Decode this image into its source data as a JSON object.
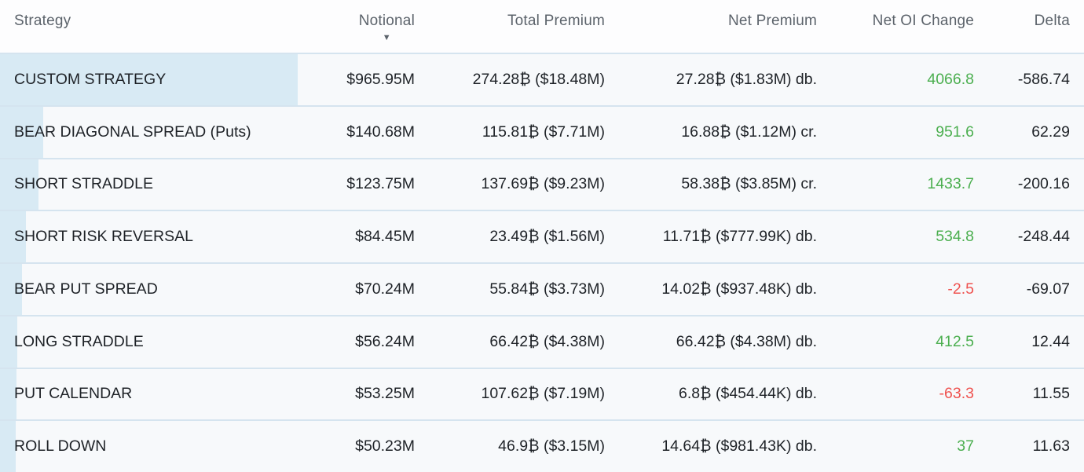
{
  "header": {
    "columns": [
      {
        "label": "Strategy"
      },
      {
        "label": "Notional",
        "sort": "desc"
      },
      {
        "label": "Total Premium"
      },
      {
        "label": "Net Premium"
      },
      {
        "label": "Net OI Change"
      },
      {
        "label": "Delta"
      }
    ],
    "sort_icon": "▼"
  },
  "colors": {
    "positive": "#4caf50",
    "negative": "#ef5350",
    "bar": "#d8eaf4",
    "row_bg": "#f7f9fb",
    "separator": "#d5e4ef",
    "header_text": "#5c636b",
    "body_text": "#1e2227"
  },
  "rows": [
    {
      "strategy": "CUSTOM STRATEGY",
      "notional": "$965.95M",
      "notional_value": 965.95,
      "total_premium": "274.28₿ ($18.48M)",
      "net_premium": "27.28₿ ($1.83M) db.",
      "net_oi_change": "4066.8",
      "delta": "-586.74"
    },
    {
      "strategy": "BEAR DIAGONAL SPREAD (Puts)",
      "notional": "$140.68M",
      "notional_value": 140.68,
      "total_premium": "115.81₿ ($7.71M)",
      "net_premium": "16.88₿ ($1.12M) cr.",
      "net_oi_change": "951.6",
      "delta": "62.29"
    },
    {
      "strategy": "SHORT STRADDLE",
      "notional": "$123.75M",
      "notional_value": 123.75,
      "total_premium": "137.69₿ ($9.23M)",
      "net_premium": "58.38₿ ($3.85M) cr.",
      "net_oi_change": "1433.7",
      "delta": "-200.16"
    },
    {
      "strategy": "SHORT RISK REVERSAL",
      "notional": "$84.45M",
      "notional_value": 84.45,
      "total_premium": "23.49₿ ($1.56M)",
      "net_premium": "11.71₿ ($777.99K) db.",
      "net_oi_change": "534.8",
      "delta": "-248.44"
    },
    {
      "strategy": "BEAR PUT SPREAD",
      "notional": "$70.24M",
      "notional_value": 70.24,
      "total_premium": "55.84₿ ($3.73M)",
      "net_premium": "14.02₿ ($937.48K) db.",
      "net_oi_change": "-2.5",
      "delta": "-69.07"
    },
    {
      "strategy": "LONG STRADDLE",
      "notional": "$56.24M",
      "notional_value": 56.24,
      "total_premium": "66.42₿ ($4.38M)",
      "net_premium": "66.42₿ ($4.38M) db.",
      "net_oi_change": "412.5",
      "delta": "12.44"
    },
    {
      "strategy": "PUT CALENDAR",
      "notional": "$53.25M",
      "notional_value": 53.25,
      "total_premium": "107.62₿ ($7.19M)",
      "net_premium": "6.8₿ ($454.44K) db.",
      "net_oi_change": "-63.3",
      "delta": "11.55"
    },
    {
      "strategy": "ROLL DOWN",
      "notional": "$50.23M",
      "notional_value": 50.23,
      "total_premium": "46.9₿ ($3.15M)",
      "net_premium": "14.64₿ ($981.43K) db.",
      "net_oi_change": "37",
      "delta": "11.63"
    }
  ]
}
